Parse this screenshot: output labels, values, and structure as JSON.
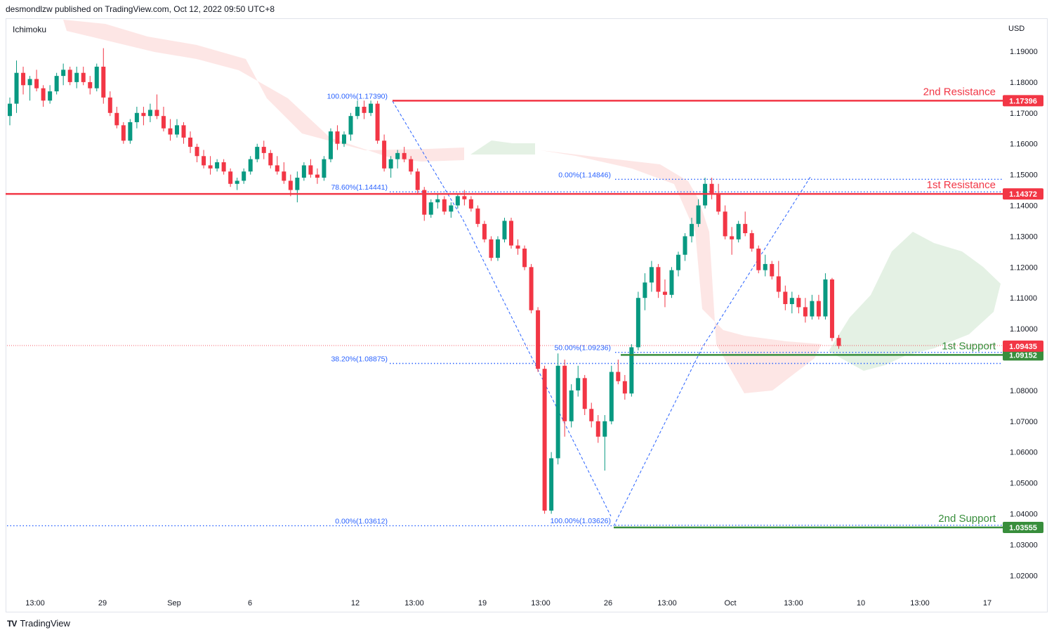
{
  "header": {
    "publisher": "desmondlzw published on TradingView.com, Oct 12, 2022 09:50 UTC+8"
  },
  "indicator": {
    "label": "Ichimoku"
  },
  "currency": "USD",
  "footer": {
    "brand": "TradingView",
    "logo": "TV"
  },
  "chart_data": {
    "type": "candlestick",
    "symbol": "",
    "y_axis": {
      "range": [
        1.015,
        1.196
      ],
      "ticks": [
        "1.19000",
        "1.18000",
        "1.17000",
        "1.16000",
        "1.15000",
        "1.14000",
        "1.13000",
        "1.12000",
        "1.11000",
        "1.10000",
        "1.08000",
        "1.07000",
        "1.06000",
        "1.05000",
        "1.04000",
        "1.03000",
        "1.02000"
      ]
    },
    "x_axis": {
      "ticks": [
        "13:00",
        "29",
        "Sep",
        "6",
        "12",
        "13:00",
        "19",
        "13:00",
        "26",
        "13:00",
        "Oct",
        "13:00",
        "10",
        "13:00",
        "17"
      ]
    },
    "levels": [
      {
        "name": "2nd Resistance",
        "value": 1.17396,
        "badge": "1.17396",
        "color": "#f23645"
      },
      {
        "name": "1st Resistance",
        "value": 1.14372,
        "badge": "1.14372",
        "color": "#f23645"
      },
      {
        "name": "1st Support",
        "value": 1.09152,
        "badge": "1.09152",
        "color": "#388e3c"
      },
      {
        "name": "2nd Support",
        "value": 1.03555,
        "badge": "1.03555",
        "color": "#388e3c"
      }
    ],
    "last_price": {
      "value": 1.09435,
      "badge": "1.09435",
      "color": "#f23645"
    },
    "fibonacci": [
      {
        "label": "100.00%(1.17390)",
        "value": 1.1739
      },
      {
        "label": "78.60%(1.14441)",
        "value": 1.14441
      },
      {
        "label": "38.20%(1.08875)",
        "value": 1.08875
      },
      {
        "label": "0.00%(1.03612)",
        "value": 1.03612
      },
      {
        "label": "0.00%(1.14846)",
        "value": 1.14846
      },
      {
        "label": "50.00%(1.09236)",
        "value": 1.09236
      },
      {
        "label": "100.00%(1.03626)",
        "value": 1.03626
      }
    ],
    "candles": [
      [
        0,
        1.169,
        1.175,
        1.166,
        1.173
      ],
      [
        1,
        1.173,
        1.187,
        1.17,
        1.183
      ],
      [
        2,
        1.183,
        1.185,
        1.176,
        1.179
      ],
      [
        3,
        1.179,
        1.182,
        1.174,
        1.181
      ],
      [
        4,
        1.181,
        1.184,
        1.177,
        1.178
      ],
      [
        5,
        1.178,
        1.179,
        1.172,
        1.174
      ],
      [
        6,
        1.174,
        1.179,
        1.173,
        1.177
      ],
      [
        7,
        1.177,
        1.183,
        1.176,
        1.182
      ],
      [
        8,
        1.182,
        1.186,
        1.179,
        1.184
      ],
      [
        9,
        1.184,
        1.185,
        1.179,
        1.18
      ],
      [
        10,
        1.18,
        1.185,
        1.178,
        1.183
      ],
      [
        11,
        1.183,
        1.185,
        1.179,
        1.18
      ],
      [
        12,
        1.18,
        1.182,
        1.176,
        1.178
      ],
      [
        13,
        1.178,
        1.186,
        1.177,
        1.185
      ],
      [
        14,
        1.185,
        1.191,
        1.173,
        1.175
      ],
      [
        15,
        1.175,
        1.177,
        1.169,
        1.17
      ],
      [
        16,
        1.17,
        1.172,
        1.165,
        1.166
      ],
      [
        17,
        1.166,
        1.167,
        1.16,
        1.161
      ],
      [
        18,
        1.161,
        1.168,
        1.16,
        1.167
      ],
      [
        19,
        1.167,
        1.172,
        1.165,
        1.17
      ],
      [
        20,
        1.17,
        1.172,
        1.166,
        1.169
      ],
      [
        21,
        1.169,
        1.173,
        1.167,
        1.171
      ],
      [
        22,
        1.171,
        1.176,
        1.168,
        1.169
      ],
      [
        23,
        1.169,
        1.172,
        1.164,
        1.165
      ],
      [
        24,
        1.165,
        1.168,
        1.161,
        1.163
      ],
      [
        25,
        1.163,
        1.168,
        1.162,
        1.166
      ],
      [
        26,
        1.166,
        1.167,
        1.16,
        1.162
      ],
      [
        27,
        1.162,
        1.164,
        1.157,
        1.159
      ],
      [
        28,
        1.159,
        1.16,
        1.154,
        1.156
      ],
      [
        29,
        1.156,
        1.158,
        1.152,
        1.153
      ],
      [
        30,
        1.153,
        1.156,
        1.15,
        1.152
      ],
      [
        31,
        1.152,
        1.155,
        1.151,
        1.154
      ],
      [
        32,
        1.154,
        1.155,
        1.15,
        1.151
      ],
      [
        33,
        1.151,
        1.152,
        1.146,
        1.147
      ],
      [
        34,
        1.147,
        1.149,
        1.145,
        1.148
      ],
      [
        35,
        1.148,
        1.152,
        1.147,
        1.151
      ],
      [
        36,
        1.151,
        1.156,
        1.15,
        1.155
      ],
      [
        37,
        1.155,
        1.16,
        1.154,
        1.159
      ],
      [
        38,
        1.159,
        1.161,
        1.155,
        1.157
      ],
      [
        39,
        1.157,
        1.158,
        1.152,
        1.153
      ],
      [
        40,
        1.153,
        1.156,
        1.15,
        1.151
      ],
      [
        41,
        1.151,
        1.154,
        1.147,
        1.148
      ],
      [
        42,
        1.148,
        1.15,
        1.143,
        1.145
      ],
      [
        43,
        1.145,
        1.151,
        1.141,
        1.149
      ],
      [
        44,
        1.149,
        1.154,
        1.148,
        1.153
      ],
      [
        45,
        1.153,
        1.155,
        1.149,
        1.15
      ],
      [
        46,
        1.15,
        1.152,
        1.147,
        1.149
      ],
      [
        47,
        1.149,
        1.156,
        1.148,
        1.155
      ],
      [
        48,
        1.155,
        1.165,
        1.154,
        1.164
      ],
      [
        49,
        1.164,
        1.166,
        1.158,
        1.16
      ],
      [
        50,
        1.16,
        1.164,
        1.159,
        1.163
      ],
      [
        51,
        1.163,
        1.17,
        1.161,
        1.169
      ],
      [
        52,
        1.169,
        1.174,
        1.168,
        1.172
      ],
      [
        53,
        1.172,
        1.174,
        1.168,
        1.17
      ],
      [
        54,
        1.17,
        1.174,
        1.169,
        1.173
      ],
      [
        55,
        1.173,
        1.1739,
        1.16,
        1.161
      ],
      [
        56,
        1.161,
        1.163,
        1.151,
        1.152
      ],
      [
        57,
        1.152,
        1.156,
        1.149,
        1.155
      ],
      [
        58,
        1.155,
        1.158,
        1.152,
        1.157
      ],
      [
        59,
        1.157,
        1.159,
        1.154,
        1.155
      ],
      [
        60,
        1.155,
        1.156,
        1.15,
        1.151
      ],
      [
        61,
        1.151,
        1.152,
        1.144,
        1.145
      ],
      [
        62,
        1.145,
        1.146,
        1.135,
        1.137
      ],
      [
        63,
        1.137,
        1.142,
        1.136,
        1.141
      ],
      [
        64,
        1.141,
        1.144,
        1.139,
        1.142
      ],
      [
        65,
        1.142,
        1.143,
        1.137,
        1.138
      ],
      [
        66,
        1.138,
        1.141,
        1.136,
        1.14
      ],
      [
        67,
        1.14,
        1.144,
        1.139,
        1.143
      ],
      [
        68,
        1.143,
        1.145,
        1.14,
        1.142
      ],
      [
        69,
        1.142,
        1.143,
        1.138,
        1.139
      ],
      [
        70,
        1.139,
        1.14,
        1.133,
        1.134
      ],
      [
        71,
        1.134,
        1.135,
        1.128,
        1.129
      ],
      [
        72,
        1.129,
        1.13,
        1.122,
        1.123
      ],
      [
        73,
        1.123,
        1.13,
        1.122,
        1.129
      ],
      [
        74,
        1.129,
        1.136,
        1.128,
        1.135
      ],
      [
        75,
        1.135,
        1.136,
        1.126,
        1.127
      ],
      [
        76,
        1.127,
        1.129,
        1.124,
        1.126
      ],
      [
        77,
        1.126,
        1.127,
        1.119,
        1.12
      ],
      [
        78,
        1.12,
        1.121,
        1.105,
        1.106
      ],
      [
        79,
        1.106,
        1.107,
        1.086,
        1.087
      ],
      [
        80,
        1.087,
        1.088,
        1.04,
        1.041
      ],
      [
        81,
        1.041,
        1.06,
        1.04,
        1.058
      ],
      [
        82,
        1.058,
        1.092,
        1.056,
        1.088
      ],
      [
        83,
        1.088,
        1.09,
        1.065,
        1.07
      ],
      [
        84,
        1.07,
        1.082,
        1.068,
        1.08
      ],
      [
        85,
        1.08,
        1.088,
        1.078,
        1.084
      ],
      [
        86,
        1.084,
        1.085,
        1.072,
        1.074
      ],
      [
        87,
        1.074,
        1.076,
        1.068,
        1.07
      ],
      [
        88,
        1.07,
        1.072,
        1.063,
        1.065
      ],
      [
        89,
        1.065,
        1.072,
        1.054,
        1.07
      ],
      [
        90,
        1.07,
        1.088,
        1.069,
        1.086
      ],
      [
        91,
        1.086,
        1.09,
        1.082,
        1.083
      ],
      [
        92,
        1.083,
        1.085,
        1.077,
        1.079
      ],
      [
        93,
        1.079,
        1.095,
        1.078,
        1.094
      ],
      [
        94,
        1.094,
        1.112,
        1.093,
        1.11
      ],
      [
        95,
        1.11,
        1.118,
        1.106,
        1.115
      ],
      [
        96,
        1.115,
        1.122,
        1.112,
        1.12
      ],
      [
        97,
        1.12,
        1.121,
        1.11,
        1.112
      ],
      [
        98,
        1.112,
        1.116,
        1.107,
        1.111
      ],
      [
        99,
        1.111,
        1.12,
        1.11,
        1.119
      ],
      [
        100,
        1.119,
        1.125,
        1.117,
        1.124
      ],
      [
        101,
        1.124,
        1.131,
        1.122,
        1.13
      ],
      [
        102,
        1.13,
        1.136,
        1.128,
        1.134
      ],
      [
        103,
        1.134,
        1.142,
        1.133,
        1.14
      ],
      [
        104,
        1.14,
        1.149,
        1.139,
        1.147
      ],
      [
        105,
        1.147,
        1.149,
        1.142,
        1.144
      ],
      [
        106,
        1.144,
        1.147,
        1.137,
        1.138
      ],
      [
        107,
        1.138,
        1.14,
        1.129,
        1.13
      ],
      [
        108,
        1.13,
        1.133,
        1.124,
        1.129
      ],
      [
        109,
        1.129,
        1.135,
        1.128,
        1.134
      ],
      [
        110,
        1.134,
        1.138,
        1.13,
        1.131
      ],
      [
        111,
        1.131,
        1.132,
        1.125,
        1.126
      ],
      [
        112,
        1.126,
        1.127,
        1.118,
        1.119
      ],
      [
        113,
        1.119,
        1.124,
        1.117,
        1.121
      ],
      [
        114,
        1.121,
        1.122,
        1.116,
        1.117
      ],
      [
        115,
        1.117,
        1.122,
        1.11,
        1.112
      ],
      [
        116,
        1.112,
        1.114,
        1.106,
        1.108
      ],
      [
        117,
        1.108,
        1.112,
        1.105,
        1.11
      ],
      [
        118,
        1.11,
        1.111,
        1.105,
        1.107
      ],
      [
        119,
        1.107,
        1.11,
        1.102,
        1.104
      ],
      [
        120,
        1.104,
        1.111,
        1.103,
        1.109
      ],
      [
        121,
        1.109,
        1.111,
        1.103,
        1.104
      ],
      [
        122,
        1.104,
        1.118,
        1.103,
        1.116
      ],
      [
        123,
        1.116,
        1.1165,
        1.096,
        1.097
      ],
      [
        124,
        1.097,
        1.098,
        1.0935,
        1.0944
      ]
    ]
  }
}
